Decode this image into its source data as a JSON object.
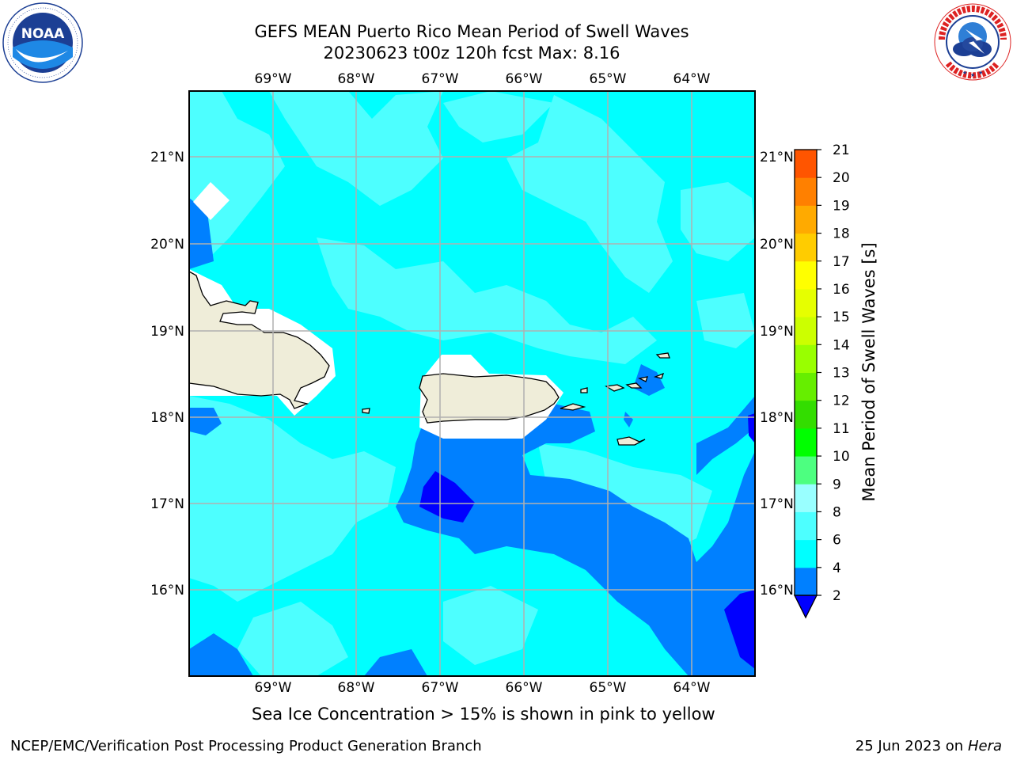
{
  "header": {
    "title_line1": "GEFS MEAN Puerto Rico Mean Period of Swell Waves",
    "title_line2": "20230623 t00z 120h fcst   Max: 8.16"
  },
  "logos": {
    "left_text": "NOAA",
    "left_ring_text": "NATIONAL OCEANIC AND ATMOSPHERIC ADMINISTRATION · U.S. DEPARTMENT OF COMMERCE",
    "right_ring_text": "NATIONAL WEATHER SERVICE"
  },
  "map": {
    "lon_ticks": [
      "69°W",
      "68°W",
      "67°W",
      "66°W",
      "65°W",
      "64°W"
    ],
    "lat_ticks": [
      "21°N",
      "20°N",
      "19°N",
      "18°N",
      "17°N",
      "16°N"
    ],
    "land_color": "#efedd9",
    "ocean_base_color": "#00ffff"
  },
  "colorbar": {
    "title": "Mean Period of Swell Waves [s]",
    "levels": [
      "2",
      "4",
      "6",
      "8",
      "9",
      "10",
      "11",
      "12",
      "13",
      "14",
      "15",
      "16",
      "17",
      "18",
      "19",
      "20",
      "21"
    ],
    "colors": [
      "#0080ff",
      "#00ffff",
      "#4dffff",
      "#99ffff",
      "#4dff80",
      "#00ff00",
      "#33dd00",
      "#66ee00",
      "#99ff00",
      "#ccff00",
      "#e6ff00",
      "#ffff00",
      "#ffcc00",
      "#ffaa00",
      "#ff8000",
      "#ff5500",
      "#ff2a00",
      "#ff0000"
    ],
    "under_color": "#0000ff"
  },
  "subtitle": "Sea Ice Concentration > 15% is shown in pink to yellow",
  "footer": {
    "left": "NCEP/EMC/Verification Post Processing Product Generation Branch",
    "right_date": "25 Jun 2023 on",
    "right_machine": "Hera"
  }
}
